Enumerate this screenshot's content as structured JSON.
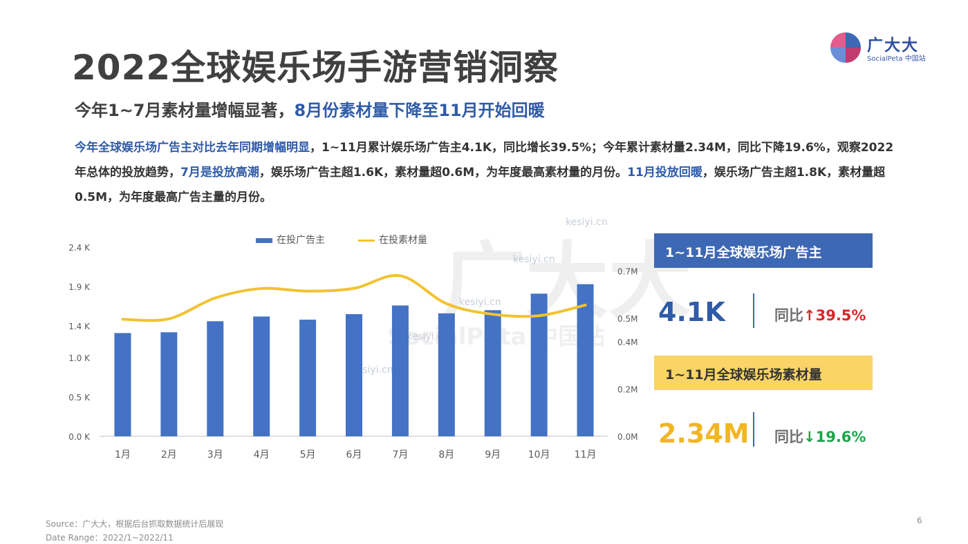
{
  "logo": {
    "name": "广大大",
    "sub": "SocialPeta 中国站"
  },
  "title": "2022全球娱乐场手游营销洞察",
  "subtitle": {
    "part1": "今年1~7月素材量增幅显著，",
    "part2": "8月份素材量下降至11月开始回暖"
  },
  "description": {
    "s1": "今年全球娱乐场广告主对比去年同期增幅明显",
    "s2": "，1~11月累计娱乐场广告主4.1K，同比增长39.5%；今年累计素材量2.34M，同比下降19.6%，观察2022年总体的投放趋势，",
    "s3": "7月是投放高潮",
    "s4": "，娱乐场广告主超1.6K，素材量超0.6M，为年度最高素材量的月份。",
    "s5": "11月投放回暖",
    "s6": "，娱乐场广告主超1.8K，素材量超0.5M，为年度最高广告主量的月份。"
  },
  "watermark": {
    "big": "广大大",
    "sub": "SocialPeta 中国站",
    "site": "kesiyi.cn"
  },
  "chart_data": {
    "type": "bar+line",
    "categories": [
      "1月",
      "2月",
      "3月",
      "4月",
      "5月",
      "6月",
      "7月",
      "8月",
      "9月",
      "10月",
      "11月"
    ],
    "series": [
      {
        "name": "在投广告主",
        "type": "bar",
        "axis": "left",
        "unit": "K",
        "color": "#4472c4",
        "values": [
          1.31,
          1.32,
          1.46,
          1.52,
          1.48,
          1.55,
          1.66,
          1.56,
          1.6,
          1.81,
          1.93
        ]
      },
      {
        "name": "在投素材量",
        "type": "line",
        "axis": "right",
        "unit": "M",
        "color": "#f2c230",
        "values": [
          0.495,
          0.497,
          0.585,
          0.625,
          0.614,
          0.626,
          0.679,
          0.561,
          0.516,
          0.51,
          0.555
        ]
      }
    ],
    "y_left": {
      "ticks": [
        0.0,
        0.5,
        1.0,
        1.4,
        1.9,
        2.4
      ],
      "labels": [
        "0.0 K",
        "0.5 K",
        "1.0 K",
        "1.4 K",
        "1.9 K",
        "2.4 K"
      ],
      "ylim": [
        0,
        2.4
      ]
    },
    "y_right": {
      "ticks": [
        0.0,
        0.2,
        0.4,
        0.5,
        0.7
      ],
      "labels": [
        "0.0M",
        "0.2M",
        "0.4M",
        "0.5M",
        "0.7M"
      ],
      "ylim": [
        0,
        0.8
      ]
    },
    "legend_position": "top",
    "grid": false
  },
  "stats": [
    {
      "label": "1~11月全球娱乐场广告主",
      "value": "4.1K",
      "yoy_label": "同比",
      "arrow": "↑",
      "yoy_value": "39.5%",
      "direction": "up"
    },
    {
      "label": "1~11月全球娱乐场素材量",
      "value": "2.34M",
      "yoy_label": "同比",
      "arrow": "↓",
      "yoy_value": "19.6%",
      "direction": "down"
    }
  ],
  "colors": {
    "brand_blue": "#2f5ba8",
    "bar_blue": "#4472c4",
    "line_yellow": "#f2c230",
    "up_red": "#d9262c",
    "down_green": "#1aa549",
    "box_yellow": "#f9d466"
  },
  "footer": {
    "source": "Source：广大大，根据后台抓取数据统计后展现",
    "range": "Date Range：2022/1~2022/11",
    "page": "6"
  }
}
